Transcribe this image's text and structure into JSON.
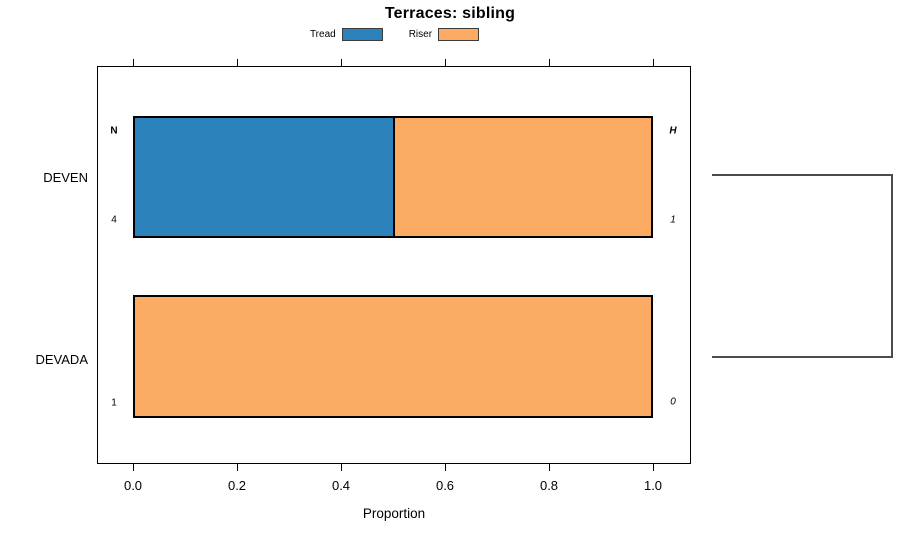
{
  "chart_data": {
    "type": "bar",
    "orientation": "horizontal",
    "stacked": true,
    "title": "Terraces: sibling",
    "xlabel": "Proportion",
    "xlim": [
      0.0,
      1.0
    ],
    "xticks": [
      "0.0",
      "0.2",
      "0.4",
      "0.6",
      "0.8",
      "1.0"
    ],
    "grid": false,
    "legend_position": "top-center",
    "categories": [
      "DEVEN",
      "DEVADA"
    ],
    "series": [
      {
        "name": "Tread",
        "color": "#2B82BA",
        "values": [
          0.5,
          0
        ]
      },
      {
        "name": "Riser",
        "color": "#FCAB62",
        "values": [
          0.5,
          1.0
        ]
      }
    ],
    "annotations": {
      "left_header": "N",
      "right_header": "H",
      "left_values": [
        "4",
        "1"
      ],
      "right_values": [
        "1",
        "0"
      ]
    },
    "dendrogram": {
      "present": true,
      "joined_leaves": [
        "DEVEN",
        "DEVADA"
      ]
    }
  }
}
